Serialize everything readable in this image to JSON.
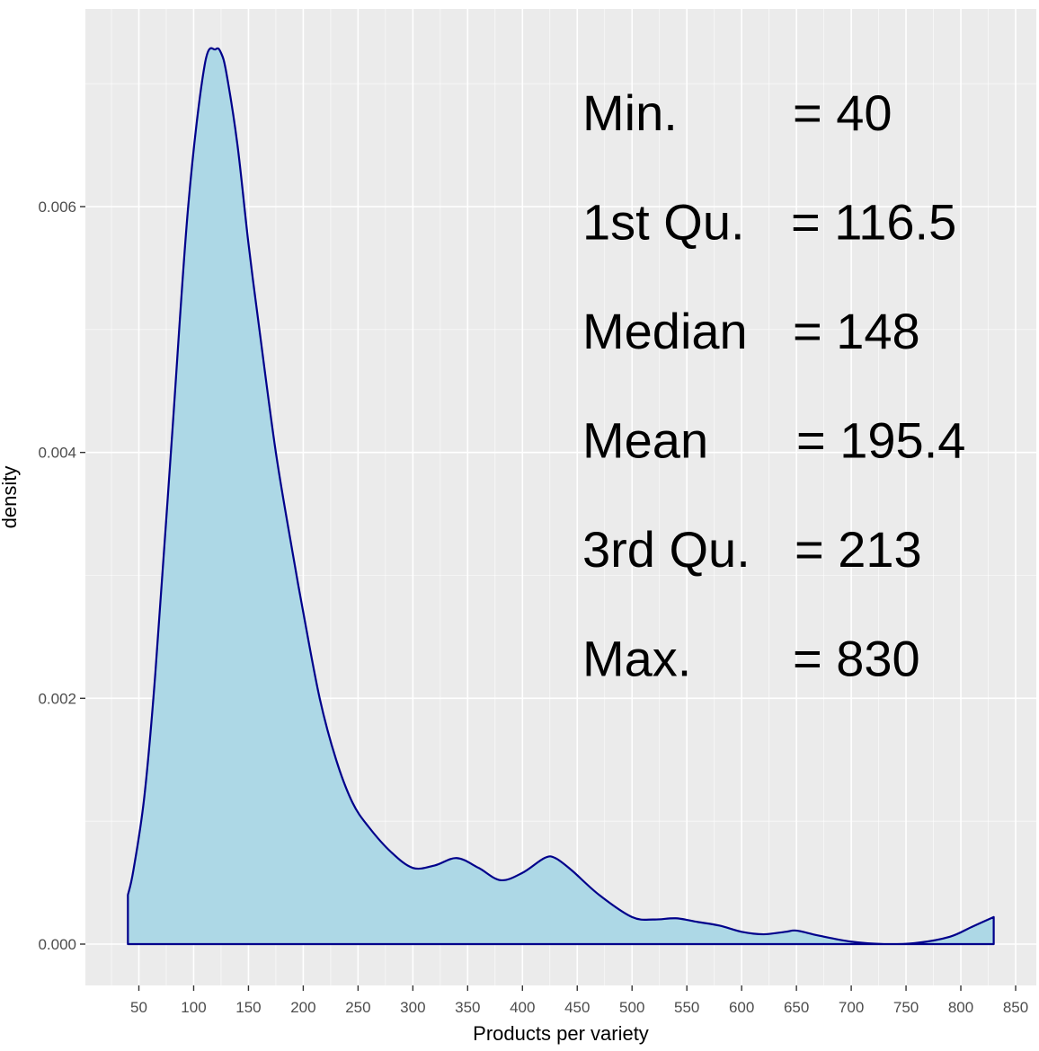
{
  "chart_data": {
    "type": "area",
    "xlabel": "Products per variety",
    "ylabel": "density",
    "xlim": [
      40,
      830
    ],
    "ylim": [
      0,
      0.0073
    ],
    "x_ticks": [
      50,
      100,
      150,
      200,
      250,
      300,
      350,
      400,
      450,
      500,
      550,
      600,
      650,
      700,
      750,
      800,
      850
    ],
    "y_ticks": [
      0.0,
      0.002,
      0.004,
      0.006
    ],
    "y_tick_labels": [
      "0.000",
      "0.002",
      "0.004",
      "0.006"
    ],
    "grid": true,
    "fill_color": "#add8e6",
    "line_color": "#00008b",
    "panel_color": "#ebebeb",
    "series": [
      {
        "x": [
          40,
          45,
          55,
          65,
          80,
          95,
          110,
          120,
          125,
          130,
          140,
          150,
          160,
          175,
          190,
          200,
          215,
          230,
          245,
          260,
          280,
          300,
          320,
          340,
          360,
          380,
          400,
          420,
          430,
          445,
          470,
          500,
          520,
          540,
          560,
          580,
          600,
          620,
          640,
          650,
          670,
          700,
          730,
          760,
          790,
          810,
          830
        ],
        "y": [
          0.0004,
          0.0006,
          0.0012,
          0.0022,
          0.0041,
          0.006,
          0.00715,
          0.00728,
          0.00725,
          0.00708,
          0.0065,
          0.0057,
          0.005,
          0.004,
          0.0032,
          0.0027,
          0.002,
          0.0015,
          0.00115,
          0.00095,
          0.00075,
          0.00062,
          0.00064,
          0.0007,
          0.00062,
          0.00052,
          0.00058,
          0.0007,
          0.0007,
          0.0006,
          0.0004,
          0.00022,
          0.0002,
          0.00021,
          0.00018,
          0.00015,
          0.0001,
          8e-05,
          0.0001,
          0.00011,
          7e-05,
          2e-05,
          0.0,
          1e-05,
          6e-05,
          0.00014,
          0.00022
        ]
      }
    ],
    "annotations": [
      {
        "label": "Min.",
        "value": "= 40"
      },
      {
        "label": "1st Qu.",
        "value": "= 116.5"
      },
      {
        "label": "Median",
        "value": "= 148"
      },
      {
        "label": "Mean",
        "value": "= 195.4"
      },
      {
        "label": "3rd Qu.",
        "value": "= 213"
      },
      {
        "label": "Max.",
        "value": "= 830"
      }
    ]
  }
}
